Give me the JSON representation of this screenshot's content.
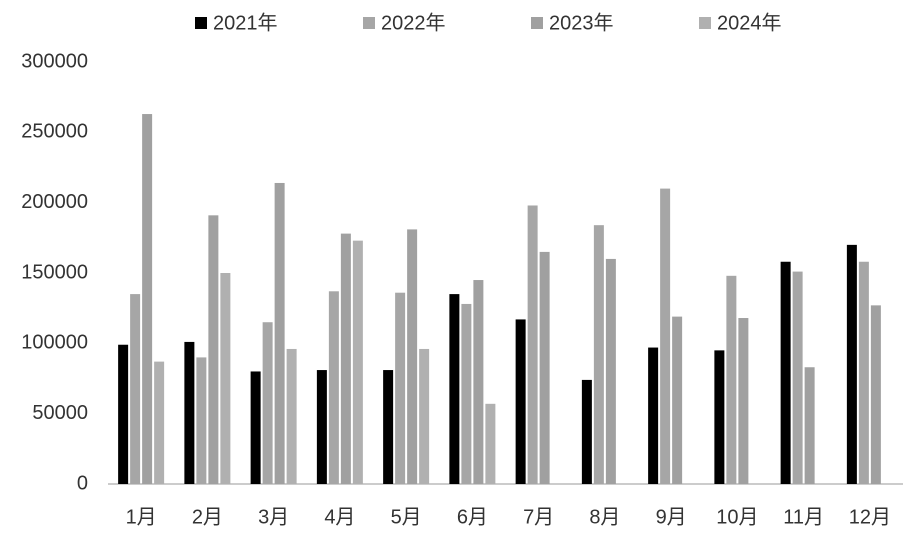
{
  "chart_data": {
    "type": "bar",
    "categories": [
      "1月",
      "2月",
      "3月",
      "4月",
      "5月",
      "6月",
      "7月",
      "8月",
      "9月",
      "10月",
      "11月",
      "12月"
    ],
    "series": [
      {
        "name": "2021年",
        "color": "#000000",
        "values": [
          99000,
          101000,
          80000,
          81000,
          81000,
          135000,
          117000,
          74000,
          97000,
          95000,
          158000,
          170000
        ]
      },
      {
        "name": "2022年",
        "color": "#a6a6a6",
        "values": [
          135000,
          90000,
          115000,
          137000,
          136000,
          128000,
          198000,
          184000,
          210000,
          148000,
          151000,
          158000
        ]
      },
      {
        "name": "2023年",
        "color": "#a0a0a0",
        "values": [
          263000,
          191000,
          214000,
          178000,
          181000,
          145000,
          165000,
          160000,
          119000,
          118000,
          83000,
          127000
        ]
      },
      {
        "name": "2024年",
        "color": "#b0b0b0",
        "values": [
          87000,
          150000,
          96000,
          173000,
          96000,
          57000,
          null,
          null,
          null,
          null,
          null,
          null
        ]
      }
    ],
    "ylim": [
      0,
      300000
    ],
    "yticks": [
      0,
      50000,
      100000,
      150000,
      200000,
      250000,
      300000
    ],
    "grid": false,
    "legend": "top"
  }
}
